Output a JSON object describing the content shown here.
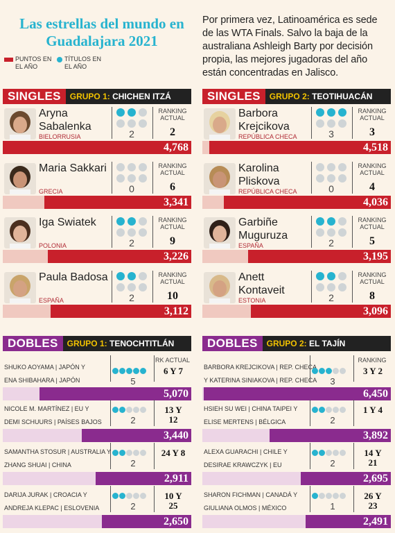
{
  "header": {
    "title": "Las estrellas del mundo en Guadalajara 2021",
    "intro": "Por primera vez, Latinoamérica es sede de las WTA Finals. Salvo la baja de la australiana Ashleigh Barty por decisión propia, las mejores jugadoras del año están concentradas en Jalisco.",
    "legend_points": "PUNTOS EN EL AÑO",
    "legend_titles": "TÍTULOS EN EL AÑO"
  },
  "colors": {
    "points": "#c8202b",
    "titles": "#27b3cf",
    "dot_off": "#cfd4d6",
    "doubles": "#8a2b8e",
    "accent": "#f2c200"
  },
  "singles": {
    "label": "SINGLES",
    "groups": [
      {
        "group_label": "GRUPO 1:",
        "group_name": "CHICHEN ITZÁ",
        "players": [
          {
            "name": "Aryna Sabalenka",
            "country": "BIELORRUSIA",
            "titles": "2",
            "ranking_label": "RANKING ACTUAL",
            "ranking": "2",
            "points": "4,768",
            "points_value": 4768
          },
          {
            "name": "Maria Sakkari",
            "country": "GRECIA",
            "titles": "0",
            "ranking_label": "RANKING ACTUAL",
            "ranking": "6",
            "points": "3,341",
            "points_value": 3341
          },
          {
            "name": "Iga Swiatek",
            "country": "POLONIA",
            "titles": "2",
            "ranking_label": "RANKING ACTUAL",
            "ranking": "9",
            "points": "3,226",
            "points_value": 3226
          },
          {
            "name": "Paula Badosa",
            "country": "ESPAÑA",
            "titles": "2",
            "ranking_label": "RANKING ACTUAL",
            "ranking": "10",
            "points": "3,112",
            "points_value": 3112
          }
        ]
      },
      {
        "group_label": "GRUPO 2:",
        "group_name": "TEOTIHUACÁN",
        "players": [
          {
            "name": "Barbora Krejcikova",
            "country": "REPÚBLICA CHECA",
            "titles": "3",
            "ranking_label": "RANKING ACTUAL",
            "ranking": "3",
            "points": "4,518",
            "points_value": 4518
          },
          {
            "name": "Karolina Pliskova",
            "country": "REPÚBLICA CHECA",
            "titles": "0",
            "ranking_label": "RANKING ACTUAL",
            "ranking": "4",
            "points": "4,036",
            "points_value": 4036
          },
          {
            "name": "Garbiñe Muguruza",
            "country": "ESPAÑA",
            "titles": "2",
            "ranking_label": "RANKING ACTUAL",
            "ranking": "5",
            "points": "3,195",
            "points_value": 3195
          },
          {
            "name": "Anett Kontaveit",
            "country": "ESTONIA",
            "titles": "2",
            "ranking_label": "RANKING ACTUAL",
            "ranking": "8",
            "points": "3,096",
            "points_value": 3096
          }
        ]
      }
    ]
  },
  "doubles": {
    "label": "DOBLES",
    "groups": [
      {
        "group_label": "GRUPO 1:",
        "group_name": "TENOCHTITLÁN",
        "ranking_label": "RK ACTUAL",
        "teams": [
          {
            "line1": "SHUKO AOYAMA | JAPÓN Y",
            "line2": "ENA SHIBAHARA | JAPÓN",
            "titles": "5",
            "ranking1": "6 Y 7",
            "ranking2": "",
            "points": "5,070",
            "points_value": 5070
          },
          {
            "line1": "NICOLE M. MARTÍNEZ | EU Y",
            "line2": "DEMI SCHUURS | PAÍSES BAJOS",
            "titles": "2",
            "ranking1": "13 Y",
            "ranking2": "12",
            "points": "3,440",
            "points_value": 3440
          },
          {
            "line1": "SAMANTHA STOSUR | AUSTRALIA Y",
            "line2": "ZHANG SHUAI | CHINA",
            "titles": "2",
            "ranking1": "24 Y 8",
            "ranking2": "",
            "points": "2,911",
            "points_value": 2911
          },
          {
            "line1": "DARIJA JURAK | CROACIA Y",
            "line2": "ANDREJA KLEPAC | ESLOVENIA",
            "titles": "2",
            "ranking1": "10 Y",
            "ranking2": "25",
            "points": "2,650",
            "points_value": 2650
          }
        ]
      },
      {
        "group_label": "GRUPO 2:",
        "group_name": "EL TAJÍN",
        "ranking_label": "RANKING",
        "teams": [
          {
            "line1": "BARBORA KREJCIKOVA | REP. CHECA",
            "line2": "Y KATERINA SINIAKOVA | REP. CHECA",
            "titles": "3",
            "ranking1": "3 Y 2",
            "ranking2": "",
            "points": "6,450",
            "points_value": 6450
          },
          {
            "line1": "HSIEH SU WEI | CHINA TAIPEI Y",
            "line2": "ELISE MERTENS | BÉLGICA",
            "titles": "2",
            "ranking1": "1 Y 4",
            "ranking2": "",
            "points": "3,892",
            "points_value": 3892
          },
          {
            "line1": "ALEXA GUARACHI | CHILE Y",
            "line2": "DESIRAE KRAWCZYK | EU",
            "titles": "2",
            "ranking1": "14 Y",
            "ranking2": "21",
            "points": "2,695",
            "points_value": 2695
          },
          {
            "line1": "SHARON FICHMAN | CANADÁ Y",
            "line2": "GIULIANA OLMOS | MÉXICO",
            "titles": "1",
            "ranking1": "26 Y",
            "ranking2": "23",
            "points": "2,491",
            "points_value": 2491
          }
        ]
      }
    ]
  }
}
